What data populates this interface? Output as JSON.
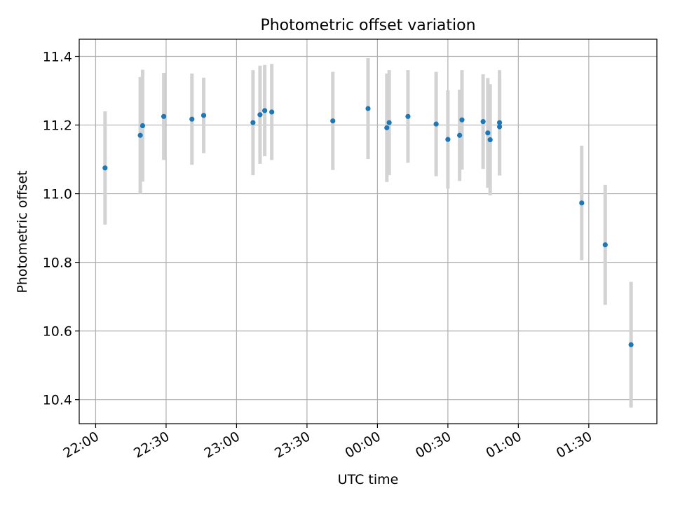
{
  "chart_data": {
    "type": "scatter",
    "title": "Photometric offset variation",
    "xlabel": "UTC time",
    "ylabel": "Photometric offset",
    "x_ticks": [
      "22:00",
      "22:30",
      "23:00",
      "23:30",
      "00:00",
      "00:30",
      "01:00",
      "01:30"
    ],
    "y_ticks": [
      "10.4",
      "10.6",
      "10.8",
      "11.0",
      "11.2",
      "11.4"
    ],
    "xlim": [
      "21:53",
      "01:59"
    ],
    "ylim": [
      10.33,
      11.45
    ],
    "grid": true,
    "legend": "none",
    "colors": {
      "points": "#1f77b4",
      "errorbars": "#d3d3d3",
      "grid": "#b0b0b0"
    },
    "points": [
      {
        "x": "22:04",
        "y": 11.075,
        "err": 0.165
      },
      {
        "x": "22:19",
        "y": 11.17,
        "err": 0.17
      },
      {
        "x": "22:20",
        "y": 11.198,
        "err": 0.163
      },
      {
        "x": "22:29",
        "y": 11.225,
        "err": 0.127
      },
      {
        "x": "22:41",
        "y": 11.217,
        "err": 0.133
      },
      {
        "x": "22:46",
        "y": 11.228,
        "err": 0.11
      },
      {
        "x": "23:07",
        "y": 11.207,
        "err": 0.153
      },
      {
        "x": "23:10",
        "y": 11.23,
        "err": 0.143
      },
      {
        "x": "23:12",
        "y": 11.242,
        "err": 0.133
      },
      {
        "x": "23:15",
        "y": 11.238,
        "err": 0.14
      },
      {
        "x": "23:41",
        "y": 11.212,
        "err": 0.143
      },
      {
        "x": "23:56",
        "y": 11.248,
        "err": 0.147
      },
      {
        "x": "00:04",
        "y": 11.192,
        "err": 0.158
      },
      {
        "x": "00:05",
        "y": 11.207,
        "err": 0.153
      },
      {
        "x": "00:13",
        "y": 11.225,
        "err": 0.135
      },
      {
        "x": "00:25",
        "y": 11.203,
        "err": 0.152
      },
      {
        "x": "00:30",
        "y": 11.158,
        "err": 0.143
      },
      {
        "x": "00:35",
        "y": 11.17,
        "err": 0.133
      },
      {
        "x": "00:36",
        "y": 11.215,
        "err": 0.145
      },
      {
        "x": "00:45",
        "y": 11.21,
        "err": 0.138
      },
      {
        "x": "00:47",
        "y": 11.177,
        "err": 0.16
      },
      {
        "x": "00:48",
        "y": 11.157,
        "err": 0.162
      },
      {
        "x": "00:52",
        "y": 11.207,
        "err": 0.153
      },
      {
        "x": "00:52",
        "y": 11.195,
        "err": 0.142
      },
      {
        "x": "01:27",
        "y": 10.973,
        "err": 0.167
      },
      {
        "x": "01:37",
        "y": 10.851,
        "err": 0.175
      },
      {
        "x": "01:48",
        "y": 10.56,
        "err": 0.183
      }
    ]
  }
}
